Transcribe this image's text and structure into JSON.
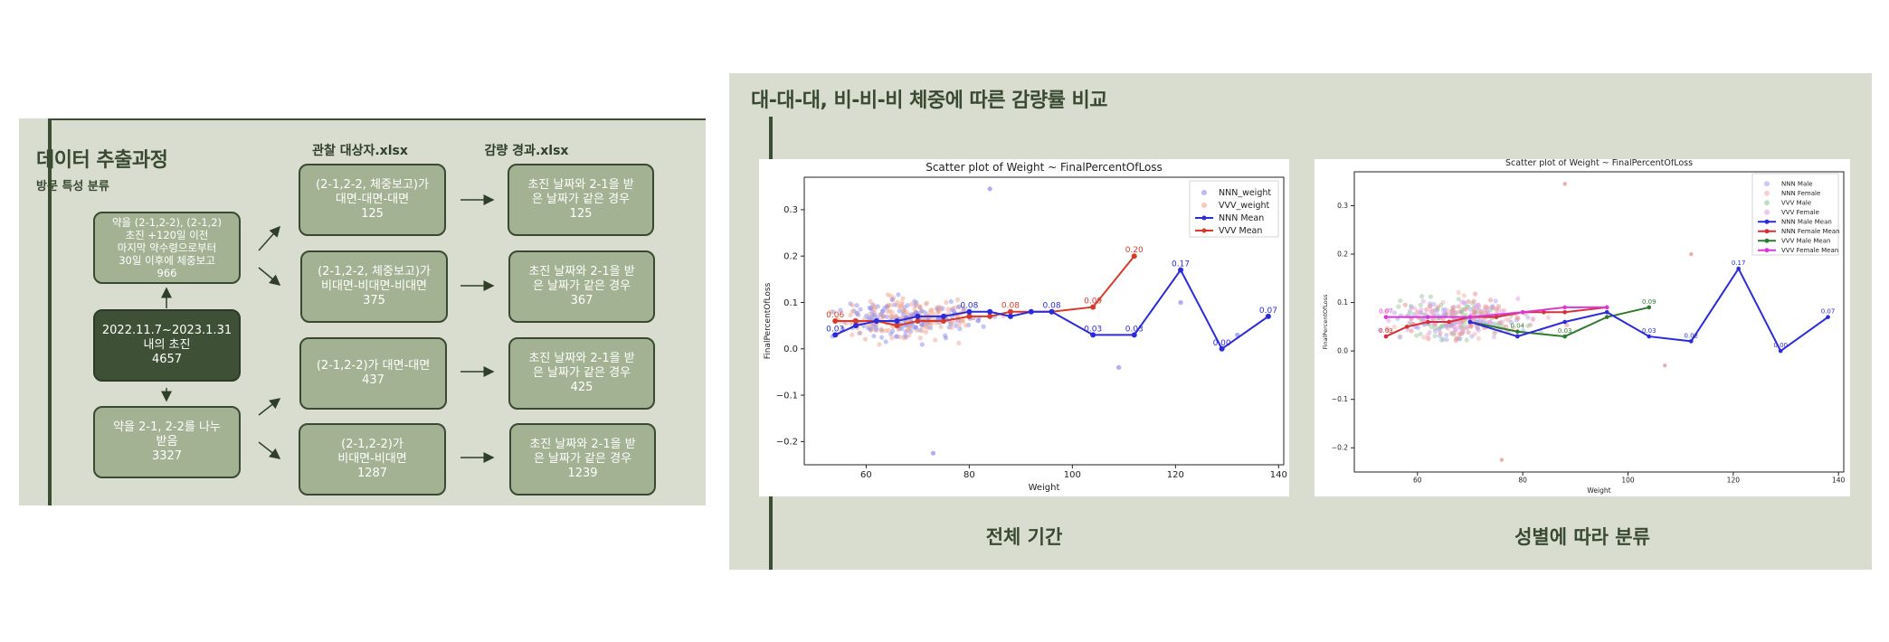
{
  "left": {
    "title": "데이터 추출과정",
    "subtitle": "방문 특성 분류",
    "col1_header": "관찰 대상자.xlsx",
    "col2_header": "감량 경과.xlsx",
    "box_top": [
      "약을 (2-1,2-2), (2-1,2)",
      "초진 +120일 이전",
      "마지막 약수령으로부터",
      "30일 이후에 체중보고",
      "966"
    ],
    "box_center": [
      "2022.11.7~2023.1.31",
      "내의 초진",
      "4657"
    ],
    "box_bottom": [
      "약을 2-1, 2-2를 나누",
      "받음",
      "3327"
    ],
    "mid_boxes": [
      [
        "(2-1,2-2, 체중보고)가",
        "대면-대면-대면",
        "125"
      ],
      [
        "(2-1,2-2, 체중보고)가",
        "비대면-비대면-비대면",
        "375"
      ],
      [
        "(2-1,2-2)가 대면-대면",
        "437"
      ],
      [
        "(2-1,2-2)가",
        "비대면-비대면",
        "1287"
      ]
    ],
    "right_boxes": [
      [
        "초진 날짜와 2-1을 받",
        "은 날짜가 같은 경우",
        "125"
      ],
      [
        "초진 날짜와 2-1을 받",
        "은 날짜가 같은 경우",
        "367"
      ],
      [
        "초진 날짜와 2-1을 받",
        "은 날짜가 같은 경우",
        "425"
      ],
      [
        "초진 날짜와 2-1을 받",
        "은 날짜가 같은 경우",
        "1239"
      ]
    ]
  },
  "right": {
    "title": "대-대-대, 비-비-비 체중에 따른 감량률 비교",
    "caption_left": "전체 기간",
    "caption_right": "성별에 따라 분류"
  },
  "chart_data": [
    {
      "type": "scatter",
      "title": "Scatter plot of Weight ~ FinalPercentOfLoss",
      "xlabel": "Weight",
      "ylabel": "FinalPercentOfLoss",
      "xlim": [
        48,
        141
      ],
      "ylim": [
        -0.25,
        0.37
      ],
      "xticks": [
        60,
        80,
        100,
        120,
        140
      ],
      "yticks": [
        -0.2,
        -0.1,
        0.0,
        0.1,
        0.2,
        0.3
      ],
      "legend_position": "top-right",
      "legend": [
        "NNN_weight",
        "VVV_weight",
        "NNN Mean",
        "VVV Mean"
      ],
      "colors": {
        "NNN": "#2b2bdb",
        "VVV": "#d83a2a",
        "NNN_pts": "#8c8cf0",
        "VVV_pts": "#f0a890"
      },
      "series": [
        {
          "name": "NNN Mean",
          "x": [
            54,
            58,
            62,
            66,
            70,
            75,
            80,
            84,
            88,
            92,
            96,
            104,
            112,
            121,
            129,
            138
          ],
          "y": [
            0.03,
            0.05,
            0.06,
            0.06,
            0.07,
            0.07,
            0.08,
            0.08,
            0.07,
            0.08,
            0.08,
            0.03,
            0.03,
            0.17,
            0.0,
            0.07
          ],
          "labels": [
            "0.03",
            "",
            "",
            "",
            "",
            "",
            "0.08",
            "",
            "",
            "",
            "0.08",
            "0.03",
            "0.03",
            "0.17",
            "0.00",
            "0.07"
          ]
        },
        {
          "name": "VVV Mean",
          "x": [
            54,
            58,
            62,
            66,
            70,
            75,
            80,
            84,
            88,
            96,
            104,
            112
          ],
          "y": [
            0.06,
            0.06,
            0.06,
            0.05,
            0.06,
            0.06,
            0.07,
            0.07,
            0.08,
            0.08,
            0.09,
            0.2
          ],
          "labels": [
            "0.06",
            "",
            "",
            "",
            "",
            "",
            "",
            "",
            "0.08",
            "",
            "0.09",
            "0.20"
          ]
        }
      ]
    },
    {
      "type": "scatter",
      "title": "Scatter plot of Weight ~ FinalPercentOfLoss",
      "xlabel": "Weight",
      "ylabel": "FinalPercentOfLoss",
      "xlim": [
        48,
        141
      ],
      "ylim": [
        -0.25,
        0.37
      ],
      "xticks": [
        60,
        80,
        100,
        120,
        140
      ],
      "yticks": [
        -0.2,
        -0.1,
        0.0,
        0.1,
        0.2,
        0.3
      ],
      "legend_position": "top-right",
      "legend": [
        "NNN Male",
        "NNN Female",
        "VVV Male",
        "VVV Female",
        "NNN Male Mean",
        "NNN Female Mean",
        "VVV Male Mean",
        "VVV Female Mean"
      ],
      "colors": {
        "NNN_Male": "#2b2bdb",
        "NNN_Female": "#d8303a",
        "VVV_Male": "#2f7a2f",
        "VVV_Female": "#d83ad8"
      },
      "series": [
        {
          "name": "NNN Male Mean",
          "x": [
            70,
            79,
            88,
            96,
            104,
            112,
            121,
            129,
            138
          ],
          "y": [
            0.06,
            0.03,
            0.06,
            0.08,
            0.03,
            0.02,
            0.17,
            0.0,
            0.07
          ],
          "labels": [
            "",
            "",
            "",
            "",
            "0.03",
            "0.02",
            "0.17",
            "0.00",
            "0.07"
          ]
        },
        {
          "name": "NNN Female Mean",
          "x": [
            54,
            58,
            62,
            66,
            70,
            75,
            80,
            84,
            88,
            96
          ],
          "y": [
            0.03,
            0.05,
            0.06,
            0.06,
            0.07,
            0.07,
            0.08,
            0.08,
            0.08,
            0.09
          ],
          "labels": [
            "0.03",
            "",
            "",
            "",
            "",
            "",
            "",
            "",
            "",
            ""
          ]
        },
        {
          "name": "VVV Male Mean",
          "x": [
            70,
            79,
            88,
            96,
            104
          ],
          "y": [
            0.06,
            0.04,
            0.03,
            0.07,
            0.09
          ],
          "labels": [
            "",
            "0.04",
            "0.03",
            "",
            "0.09"
          ]
        },
        {
          "name": "VVV Female Mean",
          "x": [
            54,
            62,
            70,
            80,
            88,
            96
          ],
          "y": [
            0.07,
            0.07,
            0.07,
            0.08,
            0.09,
            0.09
          ],
          "labels": [
            "0.07",
            "",
            "",
            "",
            "",
            ""
          ]
        }
      ]
    }
  ]
}
